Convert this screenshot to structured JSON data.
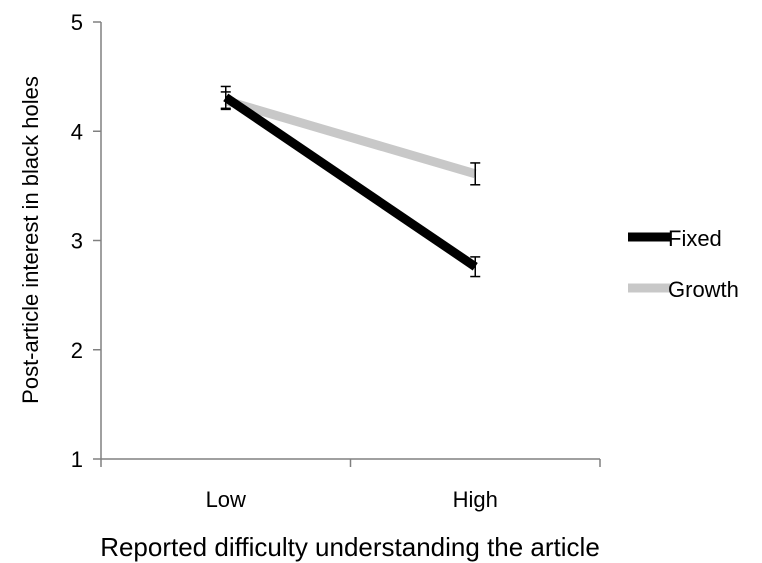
{
  "chart_data": {
    "type": "line",
    "title": "",
    "xlabel": "Reported difficulty understanding the article",
    "ylabel": "Post-article interest in black holes",
    "categories": [
      "Low",
      "High"
    ],
    "ylim": [
      1,
      5
    ],
    "yticks": [
      "1",
      "2",
      "3",
      "4",
      "5"
    ],
    "grid": false,
    "legend_position": "right",
    "series": [
      {
        "name": "Fixed",
        "color": "#000000",
        "values": [
          4.31,
          2.76
        ],
        "error": [
          0.1,
          0.09
        ]
      },
      {
        "name": "Growth",
        "color": "#c8c8c8",
        "values": [
          4.28,
          3.61
        ],
        "error": [
          0.08,
          0.1
        ]
      }
    ]
  }
}
